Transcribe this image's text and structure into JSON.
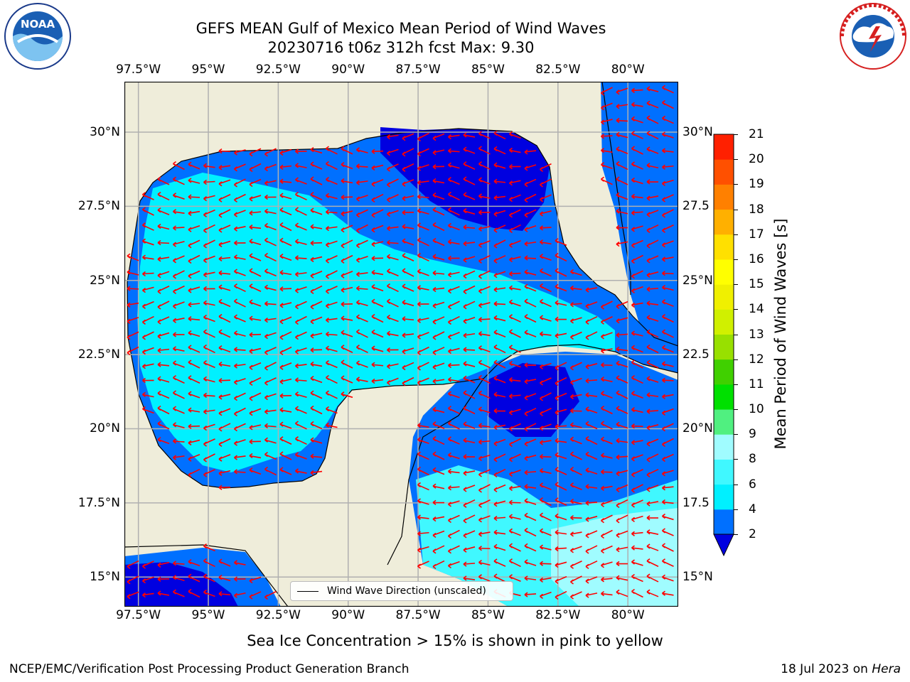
{
  "title": {
    "line1": "GEFS MEAN Gulf of Mexico Mean Period of Wind Waves",
    "line2": "20230716 t06z 312h fcst   Max: 9.30"
  },
  "logos": {
    "left": {
      "text": "NOAA",
      "ring_text": "NATIONAL OCEANIC AND ATMOSPHERIC ADMINISTRATION",
      "bottom_text": "U.S. DEPARTMENT OF COMMERCE"
    },
    "right": {
      "ring_text": "NATIONAL WEATHER SERVICE"
    }
  },
  "map": {
    "lon_labels": [
      "97.5°W",
      "95°W",
      "92.5°W",
      "90°W",
      "87.5°W",
      "85°W",
      "82.5°W",
      "80°W"
    ],
    "lon_values": [
      -97.5,
      -95,
      -92.5,
      -90,
      -87.5,
      -85,
      -82.5,
      -80
    ],
    "lat_labels_left": [
      "30°N",
      "27.5°N",
      "25°N",
      "22.5°N",
      "20°N",
      "17.5°N",
      "15°N"
    ],
    "lat_labels_right": [
      "30°N",
      "27.5",
      "25°N",
      "22.5",
      "20°N",
      "17.5",
      "15°N"
    ],
    "lat_values": [
      30,
      27.5,
      25,
      22.5,
      20,
      17.5,
      15
    ],
    "extent": {
      "lon_min": -98,
      "lon_max": -78.2,
      "lat_min": 14,
      "lat_max": 31.7
    },
    "colors": {
      "land": "#efedda",
      "grid": "#b0b0b0",
      "arrow": "#ff0000",
      "coast": "#000000"
    },
    "arrow_direction": "toward west",
    "legend_label": "Wind Wave Direction (unscaled)"
  },
  "colorbar": {
    "label": "Mean Period of Wind Waves [s]",
    "ticks": [
      "2",
      "4",
      "6",
      "8",
      "9",
      "10",
      "11",
      "12",
      "13",
      "14",
      "15",
      "16",
      "17",
      "18",
      "19",
      "20",
      "21"
    ],
    "colors": [
      "#0070ff",
      "#00f0ff",
      "#40f8ff",
      "#a0fcff",
      "#50f080",
      "#00e000",
      "#40d000",
      "#98e000",
      "#d0f000",
      "#f0f000",
      "#ffff00",
      "#ffe000",
      "#ffb000",
      "#ff8000",
      "#ff5000",
      "#ff2000",
      "#ff0000"
    ],
    "extend_below_color": "#0000e0"
  },
  "chart_data": {
    "type": "heatmap",
    "title": "GEFS MEAN Gulf of Mexico Mean Period of Wind Waves",
    "subtitle": "20230716 t06z 312h fcst   Max: 9.30",
    "colorbar_label": "Mean Period of Wind Waves [s]",
    "levels": [
      2,
      4,
      6,
      8,
      9,
      10,
      11,
      12,
      13,
      14,
      15,
      16,
      17,
      18,
      19,
      20,
      21
    ],
    "max_value": 9.3,
    "xlim": [
      -98,
      -78.2
    ],
    "ylim": [
      14,
      31.7
    ],
    "regions": [
      {
        "area": "western and central Gulf",
        "band": "4-6"
      },
      {
        "area": "northeast Gulf",
        "band": "<2"
      },
      {
        "area": "Yucatan Channel / NW Caribbean",
        "band": "<2"
      },
      {
        "area": "Caribbean south of Cuba",
        "band": "6-8"
      },
      {
        "area": "near Yucatan / Bay of Campeche coast",
        "band": "2-4"
      },
      {
        "area": "near 15N 80-82W",
        "band": "8-9"
      }
    ]
  },
  "footer": {
    "note": "Sea Ice Concentration > 15% is shown in pink to yellow",
    "left": "NCEP/EMC/Verification Post Processing Product Generation Branch",
    "right_prefix": "18 Jul 2023 on ",
    "right_machine": "Hera"
  }
}
